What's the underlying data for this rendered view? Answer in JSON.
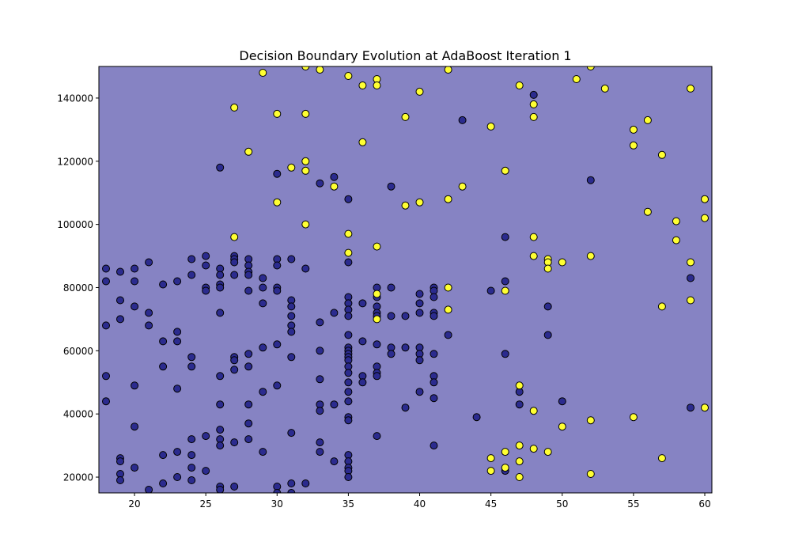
{
  "chart_data": {
    "type": "scatter",
    "title": "Decision Boundary Evolution at AdaBoost Iteration 1",
    "xlabel": "",
    "ylabel": "",
    "xlim": [
      17.5,
      60.5
    ],
    "ylim": [
      15000,
      150000
    ],
    "x_ticks": [
      20,
      25,
      30,
      35,
      40,
      45,
      50,
      55,
      60
    ],
    "x_tick_labels": [
      "20",
      "25",
      "30",
      "35",
      "40",
      "45",
      "50",
      "55",
      "60"
    ],
    "y_ticks": [
      20000,
      40000,
      60000,
      80000,
      100000,
      120000,
      140000
    ],
    "y_tick_labels": [
      "20000",
      "40000",
      "60000",
      "80000",
      "100000",
      "120000",
      "140000"
    ],
    "grid": false,
    "legend": "none",
    "colors": {
      "background_region": "#8683c3",
      "class_0": "#2b2b8e",
      "class_1": "#ffff33",
      "marker_edge": "#000000"
    },
    "series": [
      {
        "class": 0,
        "points": [
          [
            18,
            86000
          ],
          [
            18,
            82000
          ],
          [
            18,
            68000
          ],
          [
            18,
            52000
          ],
          [
            18,
            44000
          ],
          [
            19,
            85000
          ],
          [
            19,
            76000
          ],
          [
            19,
            70000
          ],
          [
            19,
            26000
          ],
          [
            19,
            25000
          ],
          [
            19,
            21000
          ],
          [
            19,
            19000
          ],
          [
            20,
            86000
          ],
          [
            20,
            82000
          ],
          [
            20,
            74000
          ],
          [
            20,
            49000
          ],
          [
            20,
            36000
          ],
          [
            20,
            23000
          ],
          [
            21,
            88000
          ],
          [
            21,
            72000
          ],
          [
            21,
            68000
          ],
          [
            21,
            16000
          ],
          [
            22,
            81000
          ],
          [
            22,
            63000
          ],
          [
            22,
            55000
          ],
          [
            22,
            27000
          ],
          [
            22,
            18000
          ],
          [
            23,
            82000
          ],
          [
            23,
            66000
          ],
          [
            23,
            63000
          ],
          [
            23,
            48000
          ],
          [
            23,
            28000
          ],
          [
            23,
            20000
          ],
          [
            24,
            89000
          ],
          [
            24,
            84000
          ],
          [
            24,
            58000
          ],
          [
            24,
            55000
          ],
          [
            24,
            32000
          ],
          [
            24,
            27000
          ],
          [
            24,
            23000
          ],
          [
            24,
            19000
          ],
          [
            25,
            90000
          ],
          [
            25,
            87000
          ],
          [
            25,
            80000
          ],
          [
            25,
            79000
          ],
          [
            25,
            33000
          ],
          [
            25,
            22000
          ],
          [
            26,
            118000
          ],
          [
            26,
            86000
          ],
          [
            26,
            84000
          ],
          [
            26,
            81000
          ],
          [
            26,
            80000
          ],
          [
            26,
            72000
          ],
          [
            26,
            52000
          ],
          [
            26,
            43000
          ],
          [
            26,
            35000
          ],
          [
            26,
            32000
          ],
          [
            26,
            30000
          ],
          [
            26,
            17000
          ],
          [
            26,
            16000
          ],
          [
            27,
            90000
          ],
          [
            27,
            89000
          ],
          [
            27,
            88000
          ],
          [
            27,
            84000
          ],
          [
            27,
            58000
          ],
          [
            27,
            57000
          ],
          [
            27,
            54000
          ],
          [
            27,
            31000
          ],
          [
            27,
            17000
          ],
          [
            28,
            89000
          ],
          [
            28,
            87000
          ],
          [
            28,
            85000
          ],
          [
            28,
            84000
          ],
          [
            28,
            79000
          ],
          [
            28,
            59000
          ],
          [
            28,
            55000
          ],
          [
            28,
            43000
          ],
          [
            28,
            37000
          ],
          [
            28,
            32000
          ],
          [
            29,
            83000
          ],
          [
            29,
            80000
          ],
          [
            29,
            75000
          ],
          [
            29,
            61000
          ],
          [
            29,
            47000
          ],
          [
            29,
            28000
          ],
          [
            30,
            116000
          ],
          [
            30,
            89000
          ],
          [
            30,
            87000
          ],
          [
            30,
            80000
          ],
          [
            30,
            79000
          ],
          [
            30,
            62000
          ],
          [
            30,
            49000
          ],
          [
            30,
            17000
          ],
          [
            30,
            15000
          ],
          [
            31,
            89000
          ],
          [
            31,
            76000
          ],
          [
            31,
            74000
          ],
          [
            31,
            71000
          ],
          [
            31,
            68000
          ],
          [
            31,
            66000
          ],
          [
            31,
            58000
          ],
          [
            31,
            34000
          ],
          [
            31,
            18000
          ],
          [
            31,
            15000
          ],
          [
            32,
            86000
          ],
          [
            32,
            18000
          ],
          [
            33,
            113000
          ],
          [
            33,
            69000
          ],
          [
            33,
            60000
          ],
          [
            33,
            51000
          ],
          [
            33,
            43000
          ],
          [
            33,
            41000
          ],
          [
            33,
            31000
          ],
          [
            33,
            28000
          ],
          [
            34,
            115000
          ],
          [
            34,
            72000
          ],
          [
            34,
            43000
          ],
          [
            34,
            25000
          ],
          [
            35,
            108000
          ],
          [
            35,
            88000
          ],
          [
            35,
            77000
          ],
          [
            35,
            75000
          ],
          [
            35,
            73000
          ],
          [
            35,
            71000
          ],
          [
            35,
            65000
          ],
          [
            35,
            61000
          ],
          [
            35,
            60000
          ],
          [
            35,
            59000
          ],
          [
            35,
            58000
          ],
          [
            35,
            57000
          ],
          [
            35,
            55000
          ],
          [
            35,
            53000
          ],
          [
            35,
            50000
          ],
          [
            35,
            47000
          ],
          [
            35,
            44000
          ],
          [
            35,
            39000
          ],
          [
            35,
            38000
          ],
          [
            35,
            27000
          ],
          [
            35,
            25000
          ],
          [
            35,
            23000
          ],
          [
            35,
            22000
          ],
          [
            35,
            20000
          ],
          [
            36,
            75000
          ],
          [
            36,
            63000
          ],
          [
            36,
            52000
          ],
          [
            36,
            50000
          ],
          [
            37,
            80000
          ],
          [
            37,
            77000
          ],
          [
            37,
            74000
          ],
          [
            37,
            72000
          ],
          [
            37,
            71000
          ],
          [
            37,
            62000
          ],
          [
            37,
            55000
          ],
          [
            37,
            53000
          ],
          [
            37,
            52000
          ],
          [
            37,
            33000
          ],
          [
            38,
            112000
          ],
          [
            38,
            80000
          ],
          [
            38,
            71000
          ],
          [
            38,
            61000
          ],
          [
            38,
            59000
          ],
          [
            39,
            71000
          ],
          [
            39,
            61000
          ],
          [
            39,
            42000
          ],
          [
            40,
            78000
          ],
          [
            40,
            75000
          ],
          [
            40,
            72000
          ],
          [
            40,
            61000
          ],
          [
            40,
            59000
          ],
          [
            40,
            57000
          ],
          [
            40,
            47000
          ],
          [
            41,
            80000
          ],
          [
            41,
            79000
          ],
          [
            41,
            77000
          ],
          [
            41,
            72000
          ],
          [
            41,
            71000
          ],
          [
            41,
            59000
          ],
          [
            41,
            52000
          ],
          [
            41,
            50000
          ],
          [
            41,
            45000
          ],
          [
            41,
            30000
          ],
          [
            42,
            65000
          ],
          [
            43,
            133000
          ],
          [
            44,
            39000
          ],
          [
            45,
            79000
          ],
          [
            46,
            96000
          ],
          [
            46,
            82000
          ],
          [
            46,
            59000
          ],
          [
            46,
            22000
          ],
          [
            47,
            47000
          ],
          [
            47,
            43000
          ],
          [
            48,
            141000
          ],
          [
            49,
            74000
          ],
          [
            49,
            65000
          ],
          [
            50,
            44000
          ],
          [
            52,
            114000
          ],
          [
            59,
            83000
          ],
          [
            59,
            42000
          ]
        ]
      },
      {
        "class": 1,
        "points": [
          [
            27,
            137000
          ],
          [
            27,
            96000
          ],
          [
            28,
            123000
          ],
          [
            29,
            148000
          ],
          [
            30,
            135000
          ],
          [
            30,
            107000
          ],
          [
            31,
            118000
          ],
          [
            32,
            150000
          ],
          [
            32,
            135000
          ],
          [
            32,
            120000
          ],
          [
            32,
            117000
          ],
          [
            32,
            100000
          ],
          [
            33,
            149000
          ],
          [
            34,
            112000
          ],
          [
            35,
            147000
          ],
          [
            35,
            97000
          ],
          [
            35,
            91000
          ],
          [
            36,
            144000
          ],
          [
            36,
            126000
          ],
          [
            37,
            146000
          ],
          [
            37,
            144000
          ],
          [
            37,
            93000
          ],
          [
            37,
            78000
          ],
          [
            37,
            70000
          ],
          [
            39,
            134000
          ],
          [
            39,
            106000
          ],
          [
            40,
            142000
          ],
          [
            40,
            107000
          ],
          [
            42,
            149000
          ],
          [
            42,
            108000
          ],
          [
            42,
            80000
          ],
          [
            42,
            73000
          ],
          [
            43,
            112000
          ],
          [
            45,
            131000
          ],
          [
            45,
            26000
          ],
          [
            45,
            22000
          ],
          [
            46,
            117000
          ],
          [
            46,
            79000
          ],
          [
            46,
            28000
          ],
          [
            46,
            23000
          ],
          [
            47,
            144000
          ],
          [
            47,
            49000
          ],
          [
            47,
            30000
          ],
          [
            47,
            25000
          ],
          [
            47,
            20000
          ],
          [
            48,
            138000
          ],
          [
            48,
            134000
          ],
          [
            48,
            96000
          ],
          [
            48,
            90000
          ],
          [
            48,
            41000
          ],
          [
            48,
            29000
          ],
          [
            49,
            89000
          ],
          [
            49,
            88000
          ],
          [
            49,
            86000
          ],
          [
            49,
            28000
          ],
          [
            50,
            88000
          ],
          [
            50,
            36000
          ],
          [
            51,
            146000
          ],
          [
            52,
            150000
          ],
          [
            52,
            90000
          ],
          [
            52,
            38000
          ],
          [
            52,
            21000
          ],
          [
            53,
            143000
          ],
          [
            55,
            130000
          ],
          [
            55,
            125000
          ],
          [
            55,
            39000
          ],
          [
            56,
            133000
          ],
          [
            56,
            104000
          ],
          [
            57,
            122000
          ],
          [
            57,
            74000
          ],
          [
            57,
            26000
          ],
          [
            58,
            101000
          ],
          [
            58,
            95000
          ],
          [
            59,
            143000
          ],
          [
            59,
            88000
          ],
          [
            59,
            76000
          ],
          [
            60,
            108000
          ],
          [
            60,
            102000
          ],
          [
            60,
            42000
          ]
        ]
      }
    ]
  }
}
